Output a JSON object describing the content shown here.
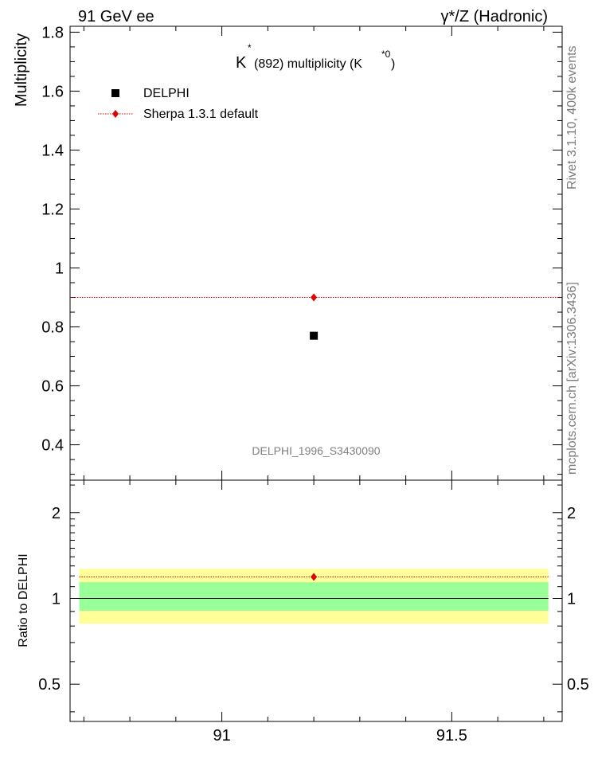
{
  "header": {
    "left": "91 GeV ee",
    "right": "γ*/Z (Hadronic)"
  },
  "side": {
    "rivet": "Rivet 3.1.10,  400k events",
    "mcplots": "mcplots.cern.ch [arXiv:1306.3436]"
  },
  "chart_data": [
    {
      "type": "scatter",
      "title_main": "K",
      "title_sup": "*",
      "title_rest": "(892) multiplicity (K",
      "title_sup2": "*0",
      "title_end": ")",
      "ylabel": "Multiplicity",
      "xlim": [
        90.67,
        91.74
      ],
      "ylim": [
        0.28,
        1.82
      ],
      "yticks": [
        "0.4",
        "0.6",
        "0.8",
        "1",
        "1.2",
        "1.4",
        "1.6",
        "1.8"
      ],
      "ytick_values": [
        0.4,
        0.6,
        0.8,
        1.0,
        1.2,
        1.4,
        1.6,
        1.8
      ],
      "watermark": "DELPHI_1996_S3430090",
      "legend": {
        "data_label": "DELPHI",
        "mc_label": "Sherpa 1.3.1 default"
      },
      "series": [
        {
          "name": "DELPHI",
          "x": [
            91.2
          ],
          "y": [
            0.77
          ],
          "color": "#000000",
          "marker": "square"
        },
        {
          "name": "Sherpa 1.3.1 default",
          "x": [
            91.2
          ],
          "y": [
            0.9
          ],
          "color": "#e00000",
          "marker": "diamond",
          "line_from": 90.67,
          "line_to": 91.74
        }
      ]
    },
    {
      "type": "scatter",
      "ylabel": "Ratio to DELPHI",
      "xlim": [
        90.67,
        91.74
      ],
      "ylim": [
        0.37,
        2.6
      ],
      "log_y": true,
      "yticks": [
        "0.5",
        "1",
        "2"
      ],
      "ytick_values": [
        0.5,
        1.0,
        2.0
      ],
      "xticks": [
        "91",
        "91.5"
      ],
      "xtick_values": [
        91.0,
        91.5
      ],
      "bands": [
        {
          "low": 0.815,
          "high": 1.27,
          "color": "#ffff99"
        },
        {
          "low": 0.905,
          "high": 1.14,
          "color": "#99ff99"
        }
      ],
      "band_x": [
        90.69,
        91.71
      ],
      "reference_line": 1.0,
      "series": [
        {
          "name": "Sherpa 1.3.1 default",
          "x": [
            91.2
          ],
          "y": [
            1.19
          ],
          "color": "#e00000",
          "marker": "diamond",
          "line_from": 90.69,
          "line_to": 91.71
        }
      ]
    }
  ]
}
